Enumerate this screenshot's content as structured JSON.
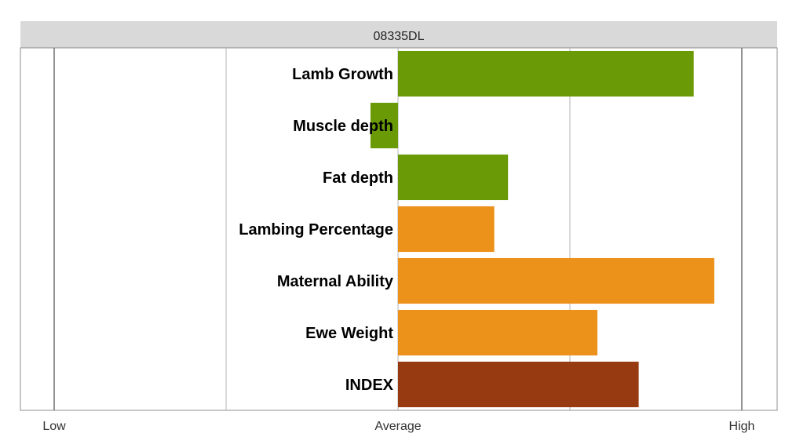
{
  "chart_data": {
    "type": "bar",
    "orientation": "horizontal",
    "title": "08335DL",
    "categories": [
      "Lamb Growth",
      "Muscle depth",
      "Fat depth",
      "Lambing Percentage",
      "Maternal Ability",
      "Ewe Weight",
      "INDEX"
    ],
    "values": [
      0.86,
      -0.08,
      0.32,
      0.28,
      0.92,
      0.58,
      0.7
    ],
    "colors": [
      "#6a9a06",
      "#6a9a06",
      "#6a9a06",
      "#ec9119",
      "#ec9119",
      "#ec9119",
      "#973a11"
    ],
    "xlim": [
      -1,
      1
    ],
    "xticks": [
      {
        "value": -1,
        "label": "Low"
      },
      {
        "value": 0,
        "label": "Average"
      },
      {
        "value": 1,
        "label": "High"
      }
    ],
    "gridlines": [
      -1,
      -0.5,
      0,
      0.5,
      1
    ],
    "grid": true,
    "legend": "none",
    "title_strip_color": "#d9d9d9"
  }
}
